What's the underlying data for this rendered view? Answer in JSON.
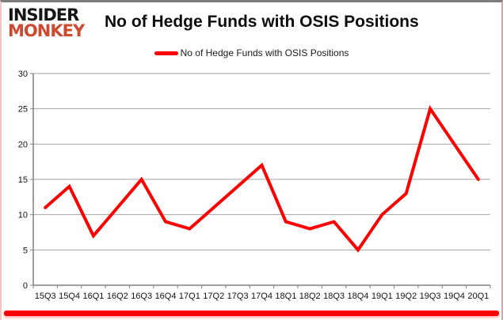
{
  "brand": {
    "line1": "INSIDER",
    "line2": "MONKEY",
    "line1_color": "#151515",
    "line2_color": "#cc4a2f"
  },
  "header": {
    "title": "No of Hedge Funds with OSIS Positions"
  },
  "legend": {
    "label": "No of Hedge Funds with OSIS Positions",
    "swatch_color": "#ff0000"
  },
  "frame": {
    "bottom_bar_color": "#ff0000",
    "top_border_color": "#7c7c7c",
    "side_border_color": "#f0c6c2"
  },
  "chart_data": {
    "type": "line",
    "title": "No of Hedge Funds with OSIS Positions",
    "categories": [
      "15Q3",
      "15Q4",
      "16Q1",
      "16Q2",
      "16Q3",
      "16Q4",
      "17Q1",
      "17Q2",
      "17Q3",
      "17Q4",
      "18Q1",
      "18Q2",
      "18Q3",
      "18Q4",
      "19Q1",
      "19Q2",
      "19Q3",
      "19Q4",
      "20Q1"
    ],
    "series": [
      {
        "name": "No of Hedge Funds with OSIS Positions",
        "color": "#ff0000",
        "line_width": 4,
        "values": [
          11,
          14,
          7,
          11,
          15,
          9,
          8,
          11,
          14,
          17,
          9,
          8,
          9,
          5,
          10,
          13,
          25,
          20,
          15
        ]
      }
    ],
    "xlabel": "",
    "ylabel": "",
    "ylim": [
      0,
      30
    ],
    "yticks": [
      0,
      5,
      10,
      15,
      20,
      25,
      30
    ],
    "grid": "horizontal",
    "gridline_color": "#a6a6a6",
    "axis_color": "#808080",
    "legend_position": "top"
  }
}
